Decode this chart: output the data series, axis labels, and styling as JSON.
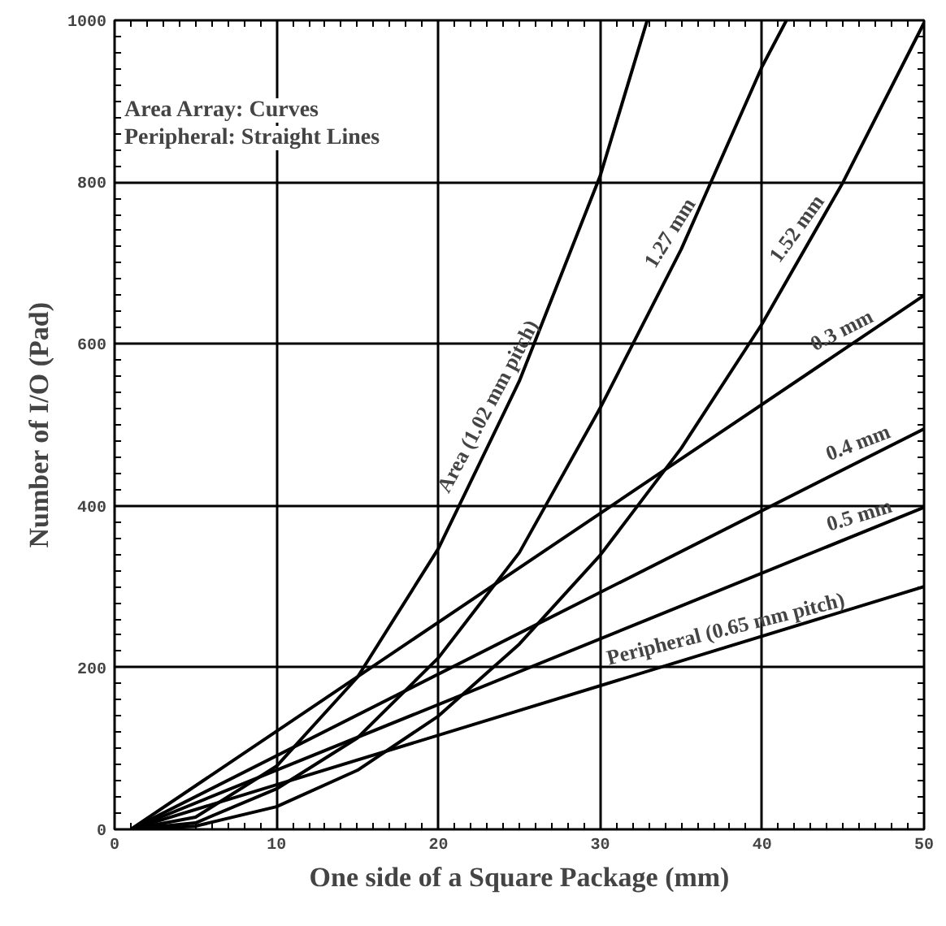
{
  "chart_data": {
    "type": "line",
    "xlabel": "One side of a Square Package (mm)",
    "ylabel": "Number of I/O (Pad)",
    "xlim": [
      0,
      50
    ],
    "ylim": [
      0,
      1000
    ],
    "xticks": [
      0,
      10,
      20,
      30,
      40,
      50
    ],
    "yticks": [
      0,
      200,
      400,
      600,
      800,
      1000
    ],
    "grid": true,
    "line_style": "solid",
    "series": [
      {
        "color": "#000000",
        "x": [
          1,
          5,
          10,
          15,
          20,
          25,
          30,
          32.9
        ],
        "values": [
          0,
          15,
          78,
          188,
          347,
          554,
          808,
          1000
        ]
      },
      {
        "color": "#000000",
        "x": [
          1,
          5,
          10,
          15,
          20,
          25,
          30,
          35,
          40,
          41.5
        ],
        "values": [
          0,
          8,
          50,
          113,
          212,
          342,
          521,
          717,
          943,
          1000
        ]
      },
      {
        "color": "#000000",
        "x": [
          2,
          5,
          10,
          15,
          20,
          25,
          30,
          35,
          40,
          45,
          50
        ],
        "values": [
          0,
          4,
          28,
          73,
          140,
          229,
          339,
          471,
          625,
          800,
          997
        ]
      },
      {
        "color": "#000000",
        "x": [
          1,
          50
        ],
        "values": [
          0,
          660
        ]
      },
      {
        "color": "#000000",
        "x": [
          1,
          50
        ],
        "values": [
          0,
          495
        ]
      },
      {
        "color": "#000000",
        "x": [
          1,
          50
        ],
        "values": [
          0,
          398
        ]
      },
      {
        "color": "#000000",
        "x": [
          1,
          50
        ],
        "values": [
          0,
          300
        ]
      }
    ],
    "annotations": [
      "Area Array: Curves",
      "Peripheral: Straight Lines",
      {
        "text": "Area (1.02 mm pitch)",
        "x": 24,
        "y": 513
      },
      {
        "text": "1.27 mm",
        "x": 35.2,
        "y": 726
      },
      {
        "text": "1.52 mm",
        "x": 43,
        "y": 730
      },
      {
        "text": "0.3 mm",
        "x": 45.4,
        "y": 598
      },
      {
        "text": "0.4 mm",
        "x": 46.3,
        "y": 458
      },
      {
        "text": "0.5 mm",
        "x": 46.3,
        "y": 368
      },
      {
        "text": "Peripheral (0.65 mm pitch)",
        "x": 38,
        "y": 227
      }
    ]
  }
}
